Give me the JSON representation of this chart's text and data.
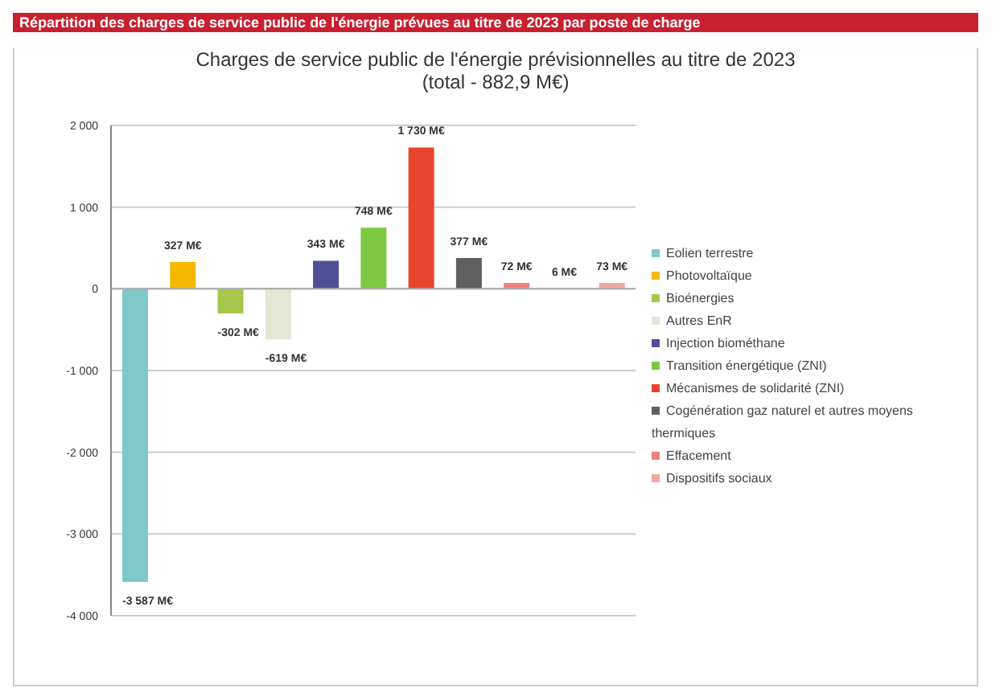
{
  "chart_data": {
    "type": "bar",
    "title": "Charges de service public de l'énergie prévisionnelles au titre de 2023",
    "subtitle": "(total - 882,9 M€)",
    "annotations": [
      "Répartition des charges de service public de l'énergie prévues au titre de 2023 par poste de charge"
    ],
    "categories": [
      null,
      null,
      null,
      null,
      null,
      null,
      null,
      null,
      null,
      null,
      null
    ],
    "stacked": true,
    "series": [
      {
        "name": "Eolien terrestre",
        "color": "#7ec8cc",
        "values": [
          -3587,
          null,
          null,
          null,
          null,
          null,
          null,
          null,
          null,
          null,
          null
        ],
        "value_labels": [
          "-3 587 M€",
          null,
          null,
          null,
          null,
          null,
          null,
          null,
          null,
          null,
          null
        ]
      },
      {
        "name": "Photovoltaïque",
        "color": "#f5b800",
        "values": [
          null,
          327,
          null,
          null,
          null,
          null,
          null,
          null,
          null,
          null,
          null
        ],
        "value_labels": [
          null,
          "327 M€",
          null,
          null,
          null,
          null,
          null,
          null,
          null,
          null,
          null
        ]
      },
      {
        "name": "Bioénergies",
        "color": "#a5c84a",
        "values": [
          null,
          null,
          -302,
          null,
          null,
          null,
          null,
          null,
          null,
          null,
          null
        ],
        "value_labels": [
          null,
          null,
          "-302 M€",
          null,
          null,
          null,
          null,
          null,
          null,
          null,
          null
        ]
      },
      {
        "name": "Autres EnR",
        "color": "#e4e8d4",
        "values": [
          null,
          null,
          null,
          -619,
          null,
          null,
          null,
          null,
          null,
          null,
          null
        ],
        "value_labels": [
          null,
          null,
          null,
          "-619 M€",
          null,
          null,
          null,
          null,
          null,
          null,
          null
        ]
      },
      {
        "name": "Injection biométhane",
        "color": "#4f4f96",
        "values": [
          null,
          null,
          null,
          null,
          343,
          null,
          null,
          null,
          null,
          null,
          null
        ],
        "value_labels": [
          null,
          null,
          null,
          null,
          "343 M€",
          null,
          null,
          null,
          null,
          null,
          null
        ]
      },
      {
        "name": "Transition énergétique (ZNI)",
        "color": "#7dc843",
        "values": [
          null,
          null,
          null,
          null,
          null,
          748,
          null,
          null,
          null,
          null,
          null
        ],
        "value_labels": [
          null,
          null,
          null,
          null,
          null,
          "748 M€",
          null,
          null,
          null,
          null,
          null
        ]
      },
      {
        "name": "Mécanismes de solidarité (ZNI)",
        "color": "#e8462c",
        "values": [
          null,
          null,
          null,
          null,
          null,
          null,
          1730,
          null,
          null,
          null,
          null
        ],
        "value_labels": [
          null,
          null,
          null,
          null,
          null,
          null,
          "1 730 M€",
          null,
          null,
          null,
          null
        ]
      },
      {
        "name": "Cogénération gaz naturel et autres moyens thermiques",
        "color": "#606060",
        "values": [
          null,
          null,
          null,
          null,
          null,
          null,
          null,
          377,
          null,
          null,
          null
        ],
        "value_labels": [
          null,
          null,
          null,
          null,
          null,
          null,
          null,
          "377 M€",
          null,
          null,
          null
        ]
      },
      {
        "name": "Effacement",
        "color": "#f08080",
        "values": [
          null,
          null,
          null,
          null,
          null,
          null,
          null,
          null,
          72,
          null,
          null
        ],
        "value_labels": [
          null,
          null,
          null,
          null,
          null,
          null,
          null,
          null,
          "72 M€",
          null,
          null
        ]
      },
      {
        "color": "#f6dada",
        "values": [
          null,
          null,
          null,
          null,
          null,
          null,
          null,
          null,
          null,
          6,
          null
        ],
        "value_labels": [
          null,
          null,
          null,
          null,
          null,
          null,
          null,
          null,
          null,
          "6 M€",
          null
        ]
      },
      {
        "name": "Dispositifs sociaux",
        "color": "#f4a6a0",
        "values": [
          null,
          null,
          null,
          null,
          null,
          null,
          null,
          null,
          null,
          null,
          73
        ],
        "value_labels": [
          null,
          null,
          null,
          null,
          null,
          null,
          null,
          null,
          null,
          null,
          "73 M€"
        ]
      }
    ],
    "ylim": [
      -4000,
      2000
    ],
    "yticks": [
      {
        "value": -4000,
        "label": "-4 000"
      },
      {
        "value": -3000,
        "label": "-3 000"
      },
      {
        "value": -2000,
        "label": "-2 000"
      },
      {
        "value": -1000,
        "label": "-1 000"
      },
      0,
      {
        "value": 1000,
        "label": "1 000"
      },
      {
        "value": 2000,
        "label": "2 000"
      }
    ],
    "grid": "y",
    "legend": "right",
    "tick_labels": "y"
  }
}
